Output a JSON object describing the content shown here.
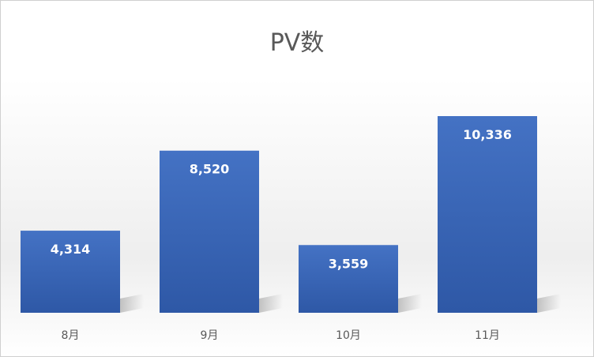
{
  "chart_data": {
    "type": "bar",
    "title": "PV数",
    "categories": [
      "8月",
      "9月",
      "10月",
      "11月"
    ],
    "values": [
      4314,
      8520,
      3559,
      10336
    ],
    "value_labels": [
      "4,314",
      "8,520",
      "3,559",
      "10,336"
    ],
    "ylim": [
      0,
      12000
    ],
    "grid": false,
    "legend": "none",
    "bar_color": "#4472c4",
    "bar_color_dark": "#2e58a6",
    "label_color": "#ffffff",
    "tick_color": "#595959"
  }
}
